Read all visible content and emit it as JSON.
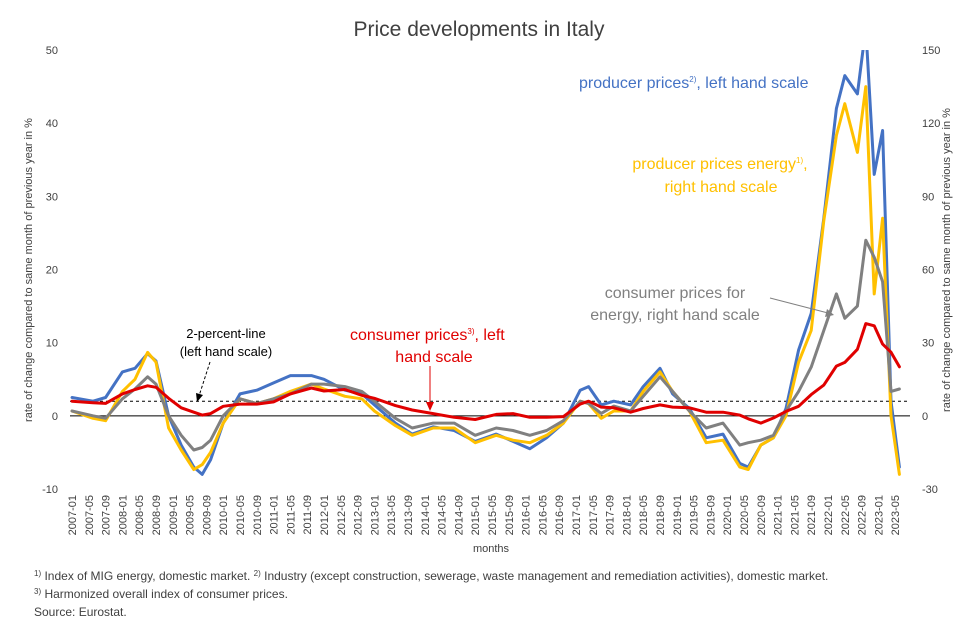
{
  "chart_data": {
    "type": "line",
    "title": "Price developments in Italy",
    "xlabel": "months",
    "ylabel_left": "rate of change compared to same month of previous year in %",
    "ylabel_right": "rate of change compared to same month of previous year in %",
    "ylim_left": [
      -10,
      50
    ],
    "ylim_right": [
      -30,
      150
    ],
    "yticks_left": [
      "50",
      "40",
      "30",
      "20",
      "10",
      "0",
      "-10"
    ],
    "yticks_right": [
      "150",
      "120",
      "90",
      "60",
      "30",
      "0",
      "-30"
    ],
    "x_tick_labels": [
      "2007-01",
      "2007-05",
      "2007-09",
      "2008-01",
      "2008-05",
      "2008-09",
      "2009-01",
      "2009-05",
      "2009-09",
      "2010-01",
      "2010-05",
      "2010-09",
      "2011-01",
      "2011-05",
      "2011-09",
      "2012-01",
      "2012-05",
      "2012-09",
      "2013-01",
      "2013-05",
      "2013-09",
      "2014-01",
      "2014-05",
      "2014-09",
      "2015-01",
      "2015-05",
      "2015-09",
      "2016-01",
      "2016-05",
      "2016-09",
      "2017-01",
      "2017-05",
      "2017-09",
      "2018-01",
      "2018-05",
      "2018-09",
      "2019-01",
      "2019-05",
      "2019-09",
      "2020-01",
      "2020-05",
      "2020-09",
      "2021-01",
      "2021-05",
      "2021-09",
      "2022-01",
      "2022-05",
      "2022-09",
      "2023-01",
      "2023-05"
    ],
    "reference_line": {
      "value": 2,
      "scale": "left",
      "label_line1": "2-percent-line",
      "label_line2": "(left hand scale)"
    },
    "series": [
      {
        "name": "producer prices, left hand scale",
        "scale": "left",
        "color": "#4472C4",
        "points": [
          [
            "2007-01",
            2.5
          ],
          [
            "2007-06",
            2.0
          ],
          [
            "2007-09",
            2.5
          ],
          [
            "2008-01",
            6.0
          ],
          [
            "2008-04",
            6.5
          ],
          [
            "2008-07",
            8.5
          ],
          [
            "2008-09",
            7.5
          ],
          [
            "2008-12",
            0.0
          ],
          [
            "2009-03",
            -4.0
          ],
          [
            "2009-06",
            -7.0
          ],
          [
            "2009-08",
            -8.0
          ],
          [
            "2009-10",
            -6.0
          ],
          [
            "2010-01",
            -1.0
          ],
          [
            "2010-05",
            3.0
          ],
          [
            "2010-09",
            3.5
          ],
          [
            "2011-01",
            4.5
          ],
          [
            "2011-05",
            5.5
          ],
          [
            "2011-10",
            5.5
          ],
          [
            "2012-01",
            5.0
          ],
          [
            "2012-06",
            3.5
          ],
          [
            "2012-10",
            3.0
          ],
          [
            "2013-01",
            1.5
          ],
          [
            "2013-06",
            -1.0
          ],
          [
            "2013-10",
            -2.5
          ],
          [
            "2014-03",
            -1.5
          ],
          [
            "2014-08",
            -2.0
          ],
          [
            "2015-01",
            -3.5
          ],
          [
            "2015-06",
            -2.5
          ],
          [
            "2015-10",
            -3.5
          ],
          [
            "2016-02",
            -4.5
          ],
          [
            "2016-06",
            -3.0
          ],
          [
            "2016-10",
            -1.0
          ],
          [
            "2017-02",
            3.5
          ],
          [
            "2017-04",
            4.0
          ],
          [
            "2017-07",
            1.5
          ],
          [
            "2017-10",
            2.0
          ],
          [
            "2018-02",
            1.5
          ],
          [
            "2018-05",
            4.0
          ],
          [
            "2018-09",
            6.5
          ],
          [
            "2018-12",
            3.0
          ],
          [
            "2019-04",
            1.0
          ],
          [
            "2019-08",
            -3.0
          ],
          [
            "2019-12",
            -2.5
          ],
          [
            "2020-04",
            -6.5
          ],
          [
            "2020-06",
            -7.0
          ],
          [
            "2020-09",
            -4.0
          ],
          [
            "2020-12",
            -3.0
          ],
          [
            "2021-03",
            1.0
          ],
          [
            "2021-06",
            9.0
          ],
          [
            "2021-09",
            14.0
          ],
          [
            "2021-12",
            27.0
          ],
          [
            "2022-03",
            42.0
          ],
          [
            "2022-05",
            46.5
          ],
          [
            "2022-08",
            44.0
          ],
          [
            "2022-10",
            53.0
          ],
          [
            "2022-12",
            33.0
          ],
          [
            "2023-02",
            39.0
          ],
          [
            "2023-04",
            2.0
          ],
          [
            "2023-06",
            -7.0
          ]
        ]
      },
      {
        "name": "producer prices energy, right hand scale",
        "scale": "right",
        "color": "#FFC000",
        "points": [
          [
            "2007-01",
            2.0
          ],
          [
            "2007-06",
            -1.0
          ],
          [
            "2007-09",
            -2.0
          ],
          [
            "2008-01",
            10.0
          ],
          [
            "2008-04",
            15.0
          ],
          [
            "2008-07",
            26.0
          ],
          [
            "2008-09",
            22.0
          ],
          [
            "2008-12",
            -5.0
          ],
          [
            "2009-03",
            -14.0
          ],
          [
            "2009-06",
            -22.0
          ],
          [
            "2009-08",
            -20.0
          ],
          [
            "2009-10",
            -15.0
          ],
          [
            "2010-01",
            -3.0
          ],
          [
            "2010-05",
            7.0
          ],
          [
            "2010-09",
            5.0
          ],
          [
            "2011-01",
            7.0
          ],
          [
            "2011-05",
            10.0
          ],
          [
            "2011-10",
            13.0
          ],
          [
            "2012-01",
            11.0
          ],
          [
            "2012-06",
            8.0
          ],
          [
            "2012-10",
            7.0
          ],
          [
            "2013-01",
            2.0
          ],
          [
            "2013-06",
            -4.0
          ],
          [
            "2013-10",
            -8.0
          ],
          [
            "2014-03",
            -5.0
          ],
          [
            "2014-08",
            -5.0
          ],
          [
            "2015-01",
            -11.0
          ],
          [
            "2015-06",
            -8.0
          ],
          [
            "2015-10",
            -10.0
          ],
          [
            "2016-02",
            -11.0
          ],
          [
            "2016-06",
            -8.0
          ],
          [
            "2016-10",
            -3.0
          ],
          [
            "2017-02",
            6.0
          ],
          [
            "2017-04",
            5.0
          ],
          [
            "2017-07",
            -1.0
          ],
          [
            "2017-10",
            2.0
          ],
          [
            "2018-02",
            2.0
          ],
          [
            "2018-05",
            10.0
          ],
          [
            "2018-09",
            18.0
          ],
          [
            "2018-12",
            10.0
          ],
          [
            "2019-04",
            2.0
          ],
          [
            "2019-08",
            -11.0
          ],
          [
            "2019-12",
            -10.0
          ],
          [
            "2020-04",
            -21.0
          ],
          [
            "2020-06",
            -22.0
          ],
          [
            "2020-09",
            -12.0
          ],
          [
            "2020-12",
            -9.0
          ],
          [
            "2021-03",
            0.0
          ],
          [
            "2021-06",
            22.0
          ],
          [
            "2021-09",
            35.0
          ],
          [
            "2021-12",
            80.0
          ],
          [
            "2022-03",
            115.0
          ],
          [
            "2022-05",
            128.0
          ],
          [
            "2022-08",
            108.0
          ],
          [
            "2022-10",
            135.0
          ],
          [
            "2022-12",
            50.0
          ],
          [
            "2023-02",
            81.0
          ],
          [
            "2023-04",
            0.0
          ],
          [
            "2023-06",
            -24.0
          ]
        ]
      },
      {
        "name": "consumer prices for energy, right hand scale",
        "scale": "right",
        "color": "#808080",
        "points": [
          [
            "2007-01",
            2.0
          ],
          [
            "2007-06",
            0.0
          ],
          [
            "2007-09",
            -1.0
          ],
          [
            "2008-01",
            7.0
          ],
          [
            "2008-04",
            11.0
          ],
          [
            "2008-07",
            16.0
          ],
          [
            "2008-09",
            13.0
          ],
          [
            "2008-12",
            0.0
          ],
          [
            "2009-03",
            -8.0
          ],
          [
            "2009-06",
            -14.0
          ],
          [
            "2009-08",
            -13.0
          ],
          [
            "2009-10",
            -10.0
          ],
          [
            "2010-01",
            0.0
          ],
          [
            "2010-05",
            7.0
          ],
          [
            "2010-09",
            5.0
          ],
          [
            "2011-01",
            7.0
          ],
          [
            "2011-05",
            9.0
          ],
          [
            "2011-10",
            13.0
          ],
          [
            "2012-01",
            13.0
          ],
          [
            "2012-06",
            12.0
          ],
          [
            "2012-10",
            10.0
          ],
          [
            "2013-01",
            6.0
          ],
          [
            "2013-06",
            -1.0
          ],
          [
            "2013-10",
            -5.0
          ],
          [
            "2014-03",
            -3.0
          ],
          [
            "2014-08",
            -3.0
          ],
          [
            "2015-01",
            -8.0
          ],
          [
            "2015-06",
            -5.0
          ],
          [
            "2015-10",
            -6.0
          ],
          [
            "2016-02",
            -8.0
          ],
          [
            "2016-06",
            -6.0
          ],
          [
            "2016-10",
            -2.0
          ],
          [
            "2017-02",
            6.0
          ],
          [
            "2017-04",
            5.0
          ],
          [
            "2017-07",
            1.0
          ],
          [
            "2017-10",
            4.0
          ],
          [
            "2018-02",
            2.0
          ],
          [
            "2018-05",
            8.0
          ],
          [
            "2018-09",
            16.0
          ],
          [
            "2018-12",
            10.0
          ],
          [
            "2019-04",
            2.0
          ],
          [
            "2019-08",
            -5.0
          ],
          [
            "2019-12",
            -3.0
          ],
          [
            "2020-04",
            -12.0
          ],
          [
            "2020-06",
            -11.0
          ],
          [
            "2020-09",
            -10.0
          ],
          [
            "2020-12",
            -8.0
          ],
          [
            "2021-03",
            2.0
          ],
          [
            "2021-06",
            10.0
          ],
          [
            "2021-09",
            20.0
          ],
          [
            "2021-12",
            35.0
          ],
          [
            "2022-03",
            50.0
          ],
          [
            "2022-05",
            40.0
          ],
          [
            "2022-08",
            45.0
          ],
          [
            "2022-10",
            72.0
          ],
          [
            "2022-12",
            65.0
          ],
          [
            "2023-02",
            55.0
          ],
          [
            "2023-04",
            10.0
          ],
          [
            "2023-06",
            11.0
          ]
        ]
      },
      {
        "name": "consumer prices, left hand scale",
        "scale": "left",
        "color": "#E00000",
        "points": [
          [
            "2007-01",
            2.0
          ],
          [
            "2007-06",
            1.8
          ],
          [
            "2007-09",
            1.7
          ],
          [
            "2008-01",
            3.0
          ],
          [
            "2008-04",
            3.6
          ],
          [
            "2008-07",
            4.1
          ],
          [
            "2008-09",
            3.9
          ],
          [
            "2008-12",
            2.4
          ],
          [
            "2009-03",
            1.1
          ],
          [
            "2009-06",
            0.5
          ],
          [
            "2009-08",
            0.1
          ],
          [
            "2009-10",
            0.3
          ],
          [
            "2010-01",
            1.3
          ],
          [
            "2010-05",
            1.6
          ],
          [
            "2010-09",
            1.6
          ],
          [
            "2011-01",
            1.9
          ],
          [
            "2011-05",
            3.0
          ],
          [
            "2011-10",
            3.8
          ],
          [
            "2012-01",
            3.4
          ],
          [
            "2012-06",
            3.6
          ],
          [
            "2012-10",
            2.8
          ],
          [
            "2013-01",
            2.4
          ],
          [
            "2013-06",
            1.4
          ],
          [
            "2013-10",
            0.8
          ],
          [
            "2014-03",
            0.3
          ],
          [
            "2014-08",
            -0.2
          ],
          [
            "2015-01",
            -0.5
          ],
          [
            "2015-06",
            0.2
          ],
          [
            "2015-10",
            0.3
          ],
          [
            "2016-02",
            -0.2
          ],
          [
            "2016-06",
            -0.2
          ],
          [
            "2016-10",
            -0.1
          ],
          [
            "2017-02",
            1.6
          ],
          [
            "2017-04",
            2.0
          ],
          [
            "2017-07",
            1.2
          ],
          [
            "2017-10",
            1.1
          ],
          [
            "2018-02",
            0.5
          ],
          [
            "2018-05",
            1.0
          ],
          [
            "2018-09",
            1.5
          ],
          [
            "2018-12",
            1.2
          ],
          [
            "2019-04",
            1.1
          ],
          [
            "2019-08",
            0.5
          ],
          [
            "2019-12",
            0.5
          ],
          [
            "2020-04",
            0.1
          ],
          [
            "2020-06",
            -0.4
          ],
          [
            "2020-09",
            -1.0
          ],
          [
            "2020-12",
            -0.3
          ],
          [
            "2021-03",
            0.6
          ],
          [
            "2021-06",
            1.3
          ],
          [
            "2021-09",
            2.9
          ],
          [
            "2021-12",
            4.2
          ],
          [
            "2022-03",
            6.8
          ],
          [
            "2022-05",
            7.3
          ],
          [
            "2022-08",
            9.1
          ],
          [
            "2022-10",
            12.6
          ],
          [
            "2022-12",
            12.3
          ],
          [
            "2023-02",
            9.8
          ],
          [
            "2023-04",
            8.7
          ],
          [
            "2023-06",
            6.7
          ]
        ]
      }
    ]
  },
  "annotations": {
    "producer_prices": {
      "text": "producer prices",
      "sup": "2)",
      "suffix": ", left hand scale",
      "color": "#4472C4"
    },
    "producer_energy": {
      "line1": "producer prices energy",
      "sup": "1)",
      "line1_suffix": ",",
      "line2": "right hand scale",
      "color": "#FFC000"
    },
    "consumer_energy": {
      "line1": "consumer prices for",
      "line2": "energy, right hand scale",
      "color": "#808080"
    },
    "consumer_prices": {
      "line1": "consumer prices",
      "sup": "3)",
      "line1_suffix": ", left",
      "line2": "hand scale",
      "color": "#E00000"
    }
  },
  "footnotes": {
    "note1_mark": "1)",
    "note1": " Index of MIG energy, domestic market. ",
    "note2_mark": "2)",
    "note2": " Industry (except construction, sewerage, waste management and remediation activities), domestic market.",
    "note3_mark": "3)",
    "note3": " Harmonized overall index of consumer prices.",
    "source": "Source: Eurostat."
  }
}
